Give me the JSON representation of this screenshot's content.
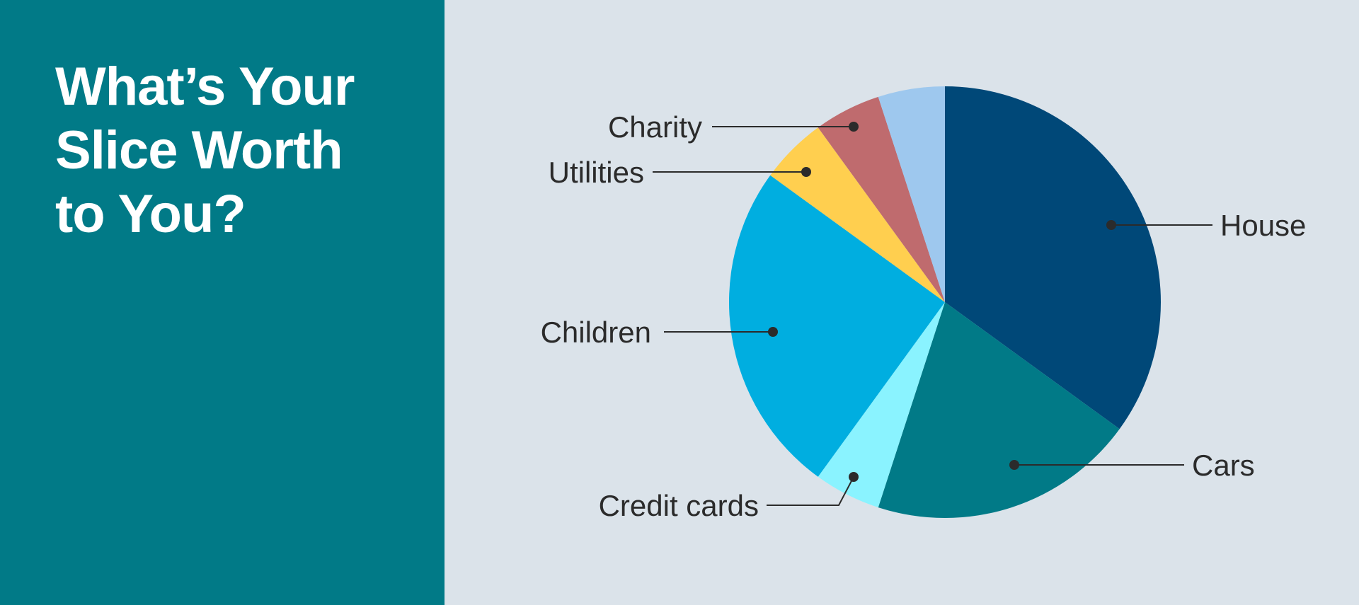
{
  "headline": {
    "line1": "What’s Your",
    "line2": "Slice Worth",
    "line3": "to You?"
  },
  "colors": {
    "left_panel": "#017a87",
    "background": "#dbe3ea",
    "leader_line": "#2b2b2b"
  },
  "chart_data": {
    "type": "pie",
    "title": "What’s Your Slice Worth to You?",
    "start": "12 o'clock",
    "direction": "clockwise",
    "legend": "none (direct labels with leader lines)",
    "slices": [
      {
        "label": "House",
        "value": 35,
        "color": "#004878"
      },
      {
        "label": "Cars",
        "value": 20,
        "color": "#017a87"
      },
      {
        "label": "Credit cards",
        "value": 5,
        "color": "#8af3ff"
      },
      {
        "label": "Children",
        "value": 25,
        "color": "#00aee0"
      },
      {
        "label": "Utilities",
        "value": 5,
        "color": "#ffcf4f"
      },
      {
        "label": "Charity",
        "value": 5,
        "color": "#bf6b6e"
      },
      {
        "label": "",
        "value": 5,
        "color": "#9ec8ee"
      }
    ]
  }
}
